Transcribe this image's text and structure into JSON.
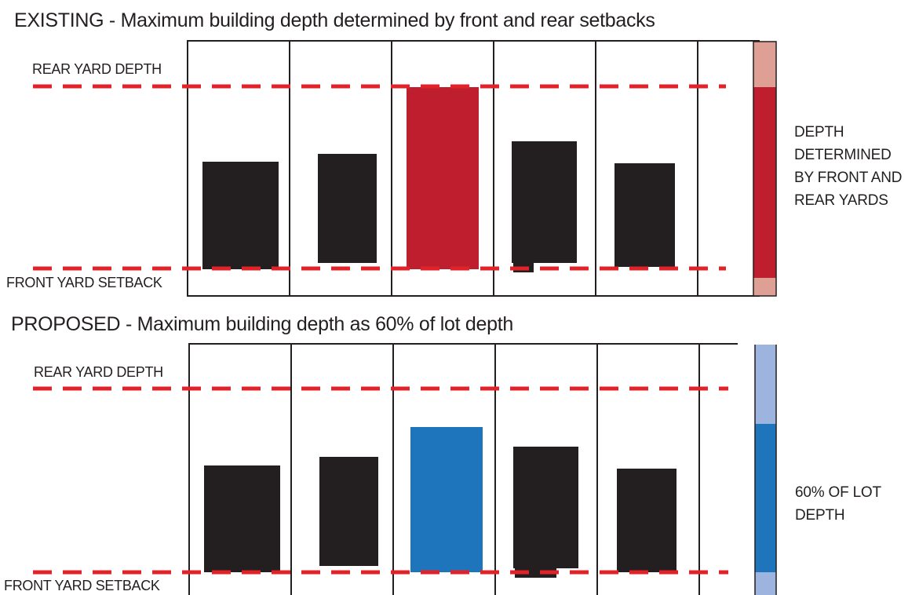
{
  "existing": {
    "title": "EXISTING - Maximum building depth determined by front and rear setbacks",
    "rear_label": "REAR YARD DEPTH",
    "front_label": "FRONT YARD SETBACK",
    "side_lines": [
      "DEPTH",
      "DETERMINED",
      "BY FRONT AND",
      "REAR YARDS"
    ]
  },
  "proposed": {
    "title": "PROPOSED - Maximum building depth as 60% of lot depth",
    "rear_label": "REAR YARD DEPTH",
    "front_label": "FRONT YARD SETBACK",
    "side_lines": [
      "60% OF LOT",
      "DEPTH"
    ]
  },
  "colors": {
    "building": "#231f20",
    "existing_highlight": "#be1e2d",
    "existing_bar_light": "#dea095",
    "proposed_highlight": "#1f75bc",
    "proposed_bar_light": "#9db5de",
    "setback_line": "#e12228",
    "lot_line": "#231f20"
  }
}
